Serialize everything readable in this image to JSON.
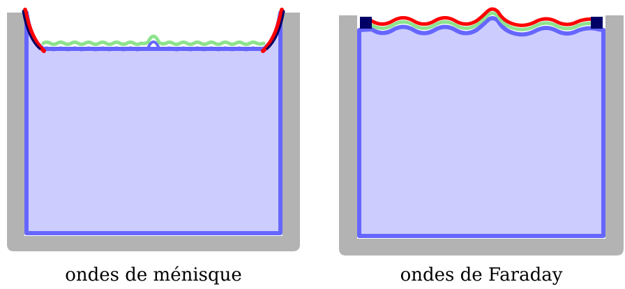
{
  "captions": {
    "left": "ondes de ménisque",
    "right": "ondes de Faraday"
  },
  "colors": {
    "container": "#b3b3b3",
    "liquid_fill": "#ccccff",
    "liquid_border": "#6666ff",
    "surface_band": "#8de38d",
    "wall_layer": "#ff0000",
    "wall_core": "#000066"
  }
}
